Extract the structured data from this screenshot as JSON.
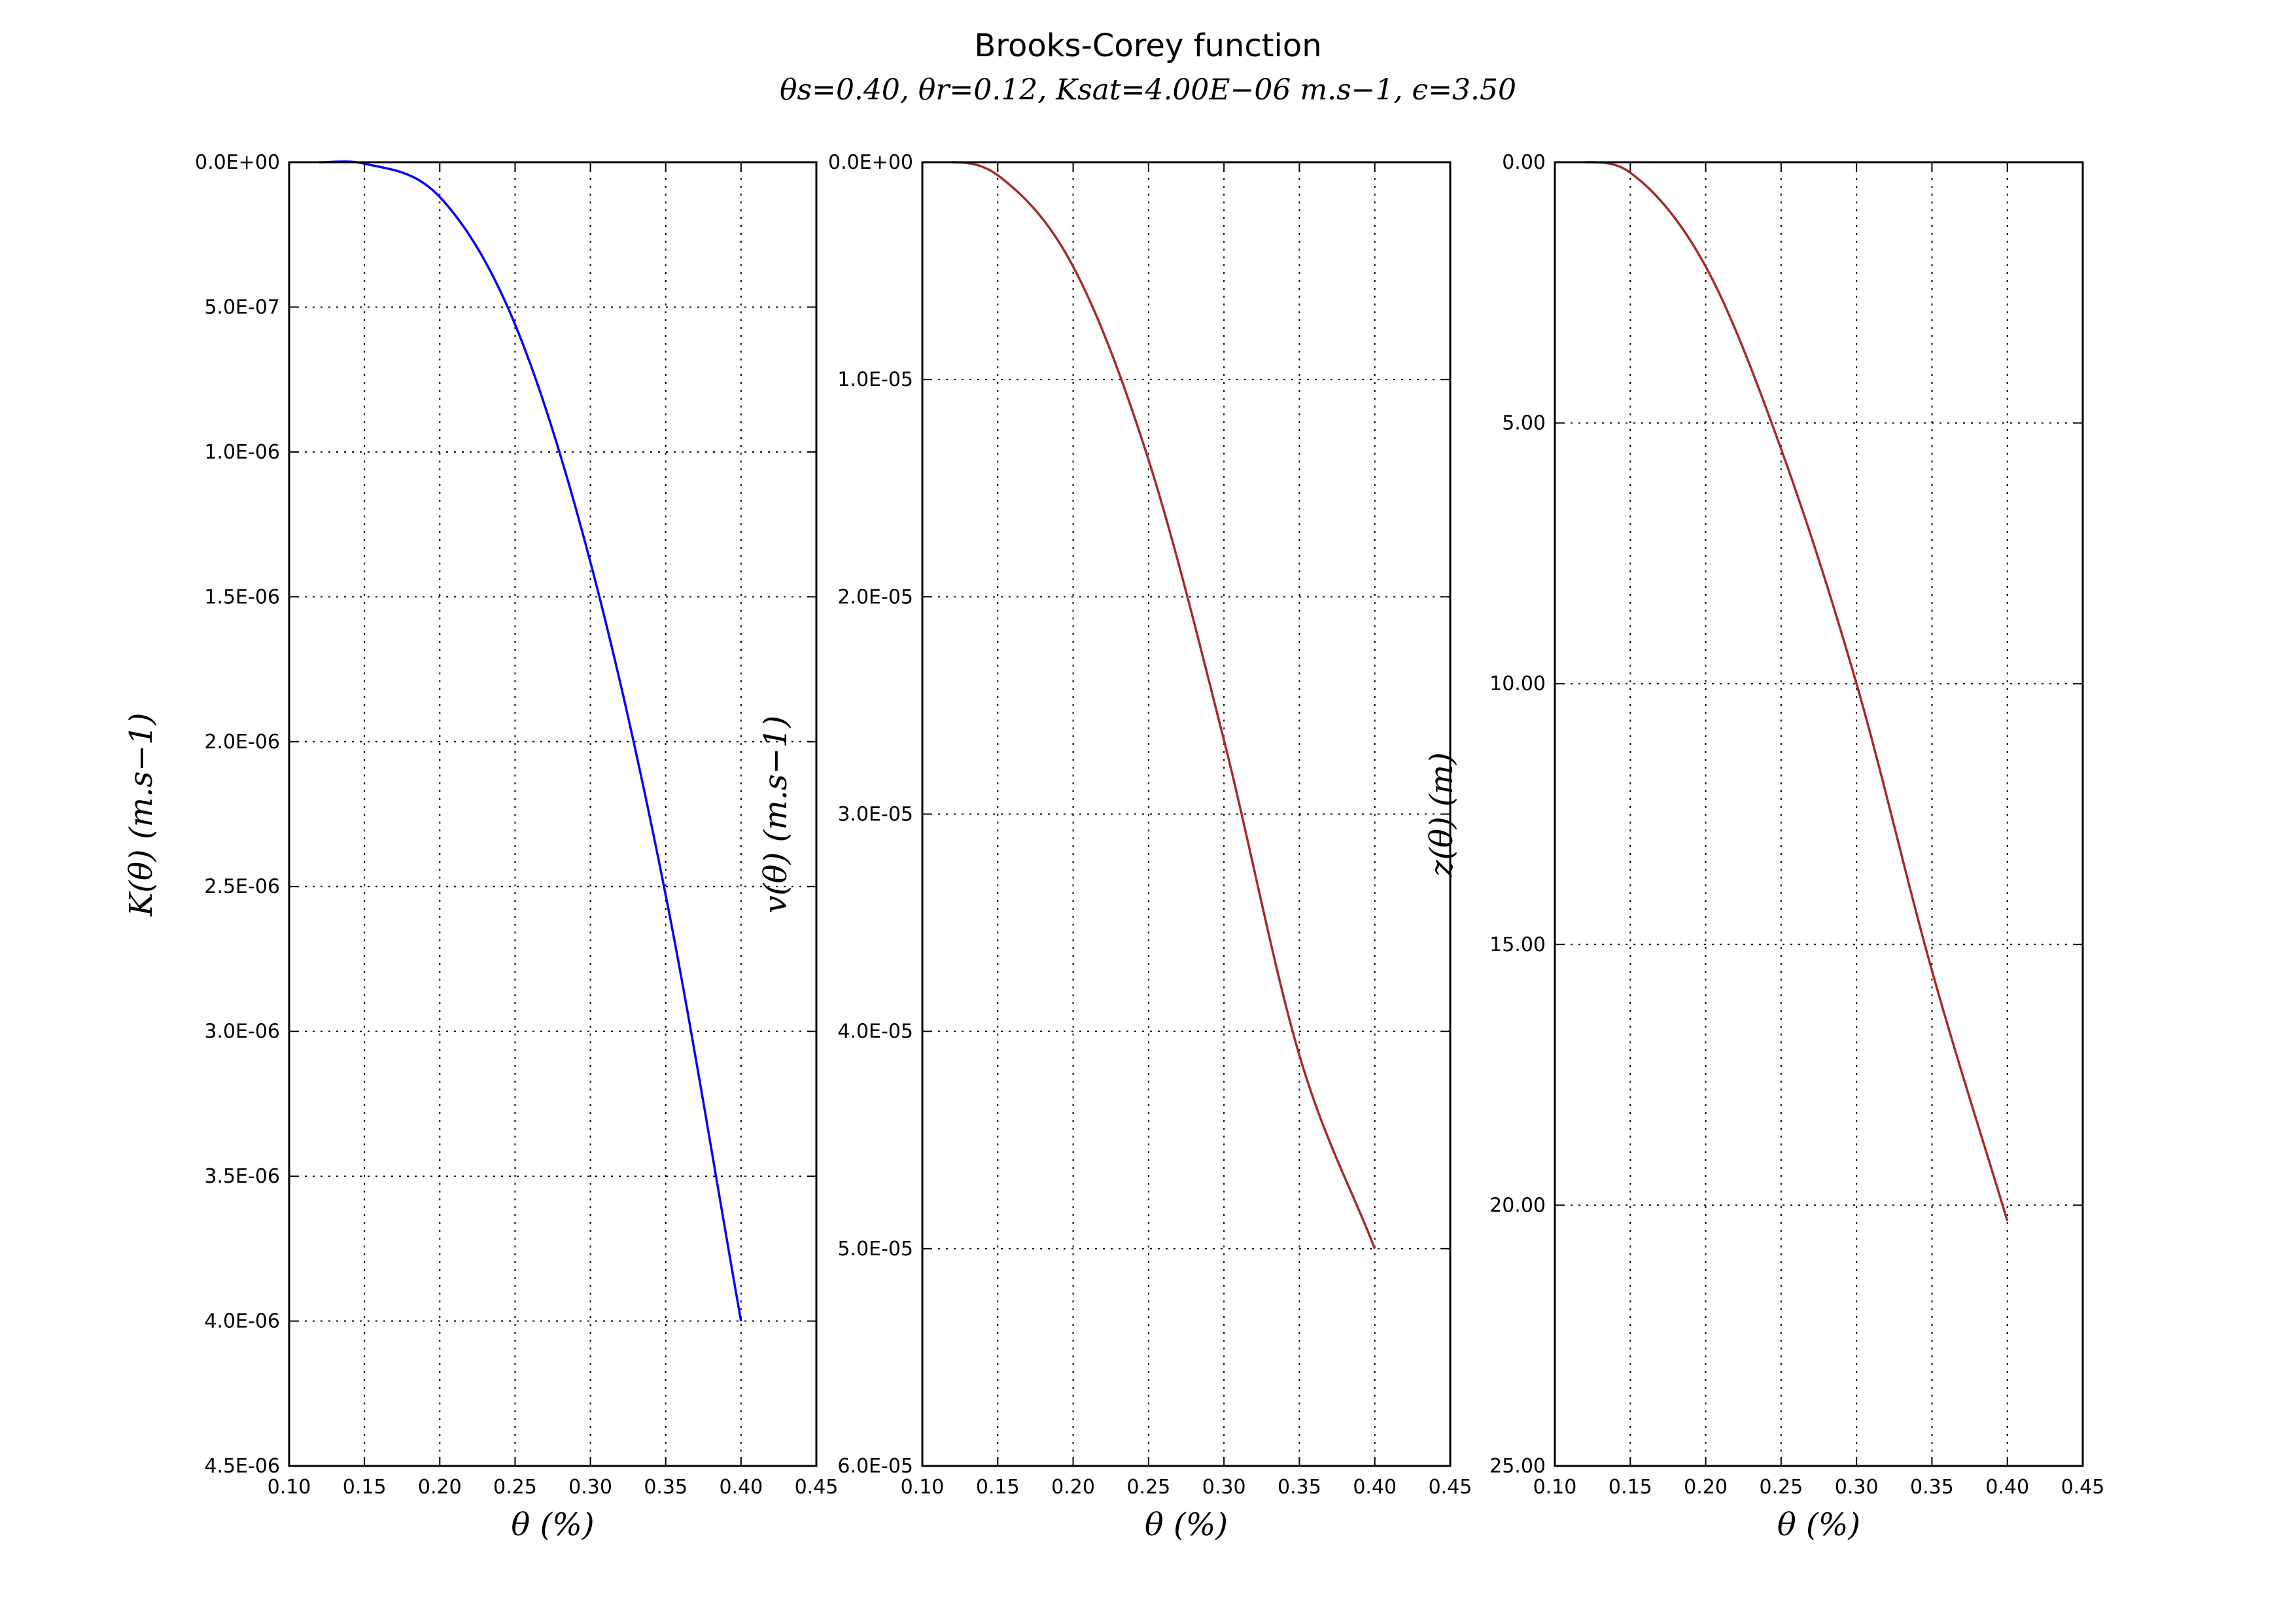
{
  "figure": {
    "title": "Brooks-Corey function",
    "subtitle": "θs=0.40, θr=0.12, Ksat=4.00E−06 m.s−1, ϵ=3.50"
  },
  "chart_data": [
    {
      "type": "line",
      "xlabel": "θ (%)",
      "ylabel": "K(θ) (m.s−1)",
      "xlim": [
        0.1,
        0.45
      ],
      "ylim": [
        0,
        4.5e-06
      ],
      "y_inverted": true,
      "grid": true,
      "x_ticks": [
        "0.10",
        "0.15",
        "0.20",
        "0.25",
        "0.30",
        "0.35",
        "0.40",
        "0.45"
      ],
      "y_ticks": [
        "0.0E+00",
        "5.0E-07",
        "1.0E-06",
        "1.5E-06",
        "2.0E-06",
        "2.5E-06",
        "3.0E-06",
        "3.5E-06",
        "4.0E-06",
        "4.5E-06"
      ],
      "series": [
        {
          "color": "#0000ff",
          "x": [
            0.12,
            0.15,
            0.2,
            0.25,
            0.3,
            0.35,
            0.4
          ],
          "y": [
            0,
            4.8e-09,
            1.2e-07,
            5.6e-07,
            1.38e-06,
            2.53e-06,
            4e-06
          ]
        }
      ]
    },
    {
      "type": "line",
      "xlabel": "θ (%)",
      "ylabel": "v(θ) (m.s−1)",
      "xlim": [
        0.1,
        0.45
      ],
      "ylim": [
        0,
        6e-05
      ],
      "y_inverted": true,
      "grid": true,
      "x_ticks": [
        "0.10",
        "0.15",
        "0.20",
        "0.25",
        "0.30",
        "0.35",
        "0.40",
        "0.45"
      ],
      "y_ticks": [
        "0.0E+00",
        "1.0E-05",
        "2.0E-05",
        "3.0E-05",
        "4.0E-05",
        "5.0E-05",
        "6.0E-05"
      ],
      "series": [
        {
          "color": "#a52a2a",
          "x": [
            0.12,
            0.15,
            0.2,
            0.25,
            0.3,
            0.35,
            0.4
          ],
          "y": [
            0,
            6e-07,
            4.8e-06,
            1.37e-05,
            2.66e-05,
            4.11e-05,
            5e-05
          ]
        }
      ]
    },
    {
      "type": "line",
      "xlabel": "θ (%)",
      "ylabel": "z(θ) (m)",
      "xlim": [
        0.1,
        0.45
      ],
      "ylim": [
        0,
        25
      ],
      "y_inverted": true,
      "grid": true,
      "x_ticks": [
        "0.10",
        "0.15",
        "0.20",
        "0.25",
        "0.30",
        "0.35",
        "0.40",
        "0.45"
      ],
      "y_ticks": [
        "0.00",
        "5.00",
        "10.00",
        "15.00",
        "20.00",
        "25.00"
      ],
      "series": [
        {
          "color": "#a52a2a",
          "x": [
            0.12,
            0.15,
            0.2,
            0.25,
            0.3,
            0.35,
            0.4
          ],
          "y": [
            0,
            0.2,
            2.0,
            5.5,
            10.0,
            15.5,
            20.3
          ]
        }
      ]
    }
  ]
}
